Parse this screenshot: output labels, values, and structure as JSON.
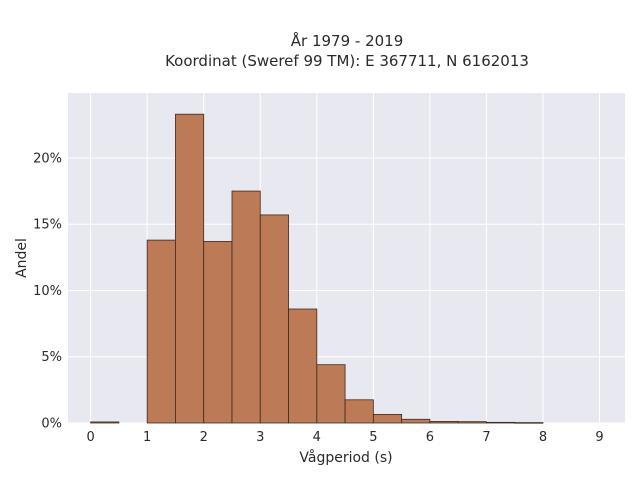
{
  "chart_data": {
    "type": "bar",
    "title": "År 1979 - 2019",
    "subtitle": "Koordinat (Sweref 99 TM): E 367711, N 6162013",
    "xlabel": "Vågperiod (s)",
    "ylabel": "Andel",
    "xlim": [
      -0.4,
      9.45
    ],
    "ylim": [
      0,
      24.9
    ],
    "x_ticks": [
      0,
      1,
      2,
      3,
      4,
      5,
      6,
      7,
      8,
      9
    ],
    "y_ticks": [
      0,
      5,
      10,
      15,
      20
    ],
    "y_tick_labels": [
      "0%",
      "5%",
      "10%",
      "15%",
      "20%"
    ],
    "bin_width": 0.5,
    "bins": [
      {
        "x0": 0.0,
        "x1": 0.5,
        "value": 0.08
      },
      {
        "x0": 0.5,
        "x1": 1.0,
        "value": 0.0
      },
      {
        "x0": 1.0,
        "x1": 1.5,
        "value": 13.8
      },
      {
        "x0": 1.5,
        "x1": 2.0,
        "value": 23.3
      },
      {
        "x0": 2.0,
        "x1": 2.5,
        "value": 13.7
      },
      {
        "x0": 2.5,
        "x1": 3.0,
        "value": 17.5
      },
      {
        "x0": 3.0,
        "x1": 3.5,
        "value": 15.7
      },
      {
        "x0": 3.5,
        "x1": 4.0,
        "value": 8.6
      },
      {
        "x0": 4.0,
        "x1": 4.5,
        "value": 4.4
      },
      {
        "x0": 4.5,
        "x1": 5.0,
        "value": 1.75
      },
      {
        "x0": 5.0,
        "x1": 5.5,
        "value": 0.65
      },
      {
        "x0": 5.5,
        "x1": 6.0,
        "value": 0.28
      },
      {
        "x0": 6.0,
        "x1": 6.5,
        "value": 0.12
      },
      {
        "x0": 6.5,
        "x1": 7.0,
        "value": 0.1
      },
      {
        "x0": 7.0,
        "x1": 7.5,
        "value": 0.05
      },
      {
        "x0": 7.5,
        "x1": 8.0,
        "value": 0.03
      }
    ],
    "grid": true,
    "bar_color": "#bc7a57",
    "bar_edge_color": "#3d2a1e",
    "plot_background": "#e8e8f0",
    "grid_color": "#ffffff"
  }
}
